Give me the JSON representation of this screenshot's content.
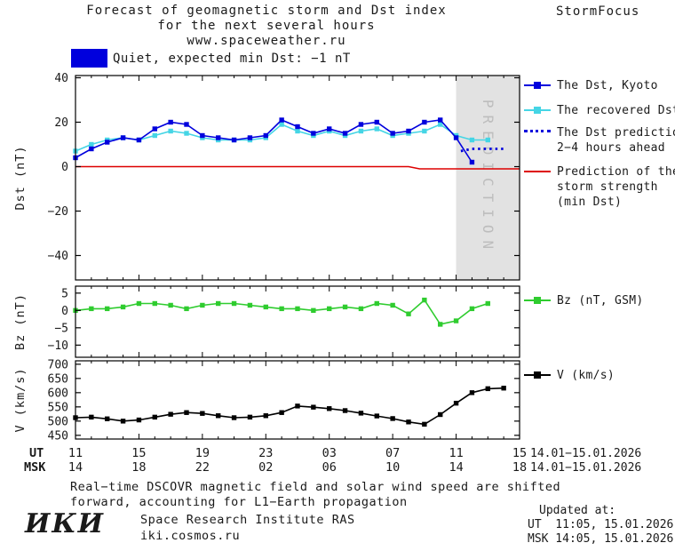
{
  "header": {
    "title_line1": "Forecast of geomagnetic storm and Dst index",
    "title_line2": "for the next several hours",
    "title_line3": "www.spaceweather.ru",
    "brand": "StormFocus"
  },
  "status": {
    "label": "Quiet, expected min Dst: −1 nT"
  },
  "colors": {
    "kyoto": "#0000dd",
    "recovered": "#45d5e5",
    "prediction": "#0000dd",
    "storm": "#dd0000",
    "bz": "#2fcc2f",
    "v": "#000000",
    "band": "#e2e2e2",
    "band_text": "#bdbdbd",
    "quiet_swatch": "#0000dd"
  },
  "chart_data": [
    {
      "type": "line",
      "title": "Forecast of geomagnetic storm and Dst index for the next several hours",
      "ylabel": "Dst (nT)",
      "ylim": [
        -51,
        41
      ],
      "yticks": [
        40,
        20,
        0,
        -20,
        -40
      ],
      "x_unit": "hours since 11:00 UT 14.01.2026",
      "prediction_band": {
        "x_start": 24,
        "x_end": 28,
        "label": "PREDICTION"
      },
      "series": [
        {
          "id": "dst-kyoto",
          "name": "The Dst, Kyoto",
          "color": "#0000dd",
          "marker": "square",
          "x": [
            0,
            1,
            2,
            3,
            4,
            5,
            6,
            7,
            8,
            9,
            10,
            11,
            12,
            13,
            14,
            15,
            16,
            17,
            18,
            19,
            20,
            21,
            22,
            23,
            24,
            25
          ],
          "values": [
            4,
            8,
            11,
            13,
            12,
            17,
            20,
            19,
            14,
            13,
            12,
            13,
            14,
            21,
            18,
            15,
            17,
            15,
            19,
            20,
            15,
            16,
            20,
            21,
            13,
            2
          ]
        },
        {
          "id": "dst-recovered",
          "name": "The recovered Dst",
          "color": "#45d5e5",
          "marker": "square",
          "x": [
            0,
            1,
            2,
            3,
            4,
            5,
            6,
            7,
            8,
            9,
            10,
            11,
            12,
            13,
            14,
            15,
            16,
            17,
            18,
            19,
            20,
            21,
            22,
            23,
            24,
            25,
            26
          ],
          "values": [
            7,
            10,
            12,
            13,
            12,
            14,
            16,
            15,
            13,
            12,
            12,
            12,
            13,
            19,
            16,
            14,
            16,
            14,
            16,
            17,
            14,
            15,
            16,
            19,
            14,
            12,
            12
          ]
        },
        {
          "id": "dst-prediction",
          "name": "The Dst prediction 2−4 hours ahead",
          "color": "#0000dd",
          "style": "dotted",
          "x": [
            24.3,
            25,
            26,
            27
          ],
          "values": [
            7,
            8,
            8,
            8
          ]
        },
        {
          "id": "storm-prediction",
          "name": "Prediction of the storm strength (min Dst)",
          "color": "#dd0000",
          "x": [
            0,
            21,
            21.7,
            28
          ],
          "values": [
            0,
            0,
            -1,
            -1
          ]
        }
      ]
    },
    {
      "type": "line",
      "ylabel": "Bz (nT)",
      "ylim": [
        -13.5,
        7
      ],
      "yticks": [
        5,
        0,
        -5,
        -10
      ],
      "series": [
        {
          "id": "bz",
          "name": "Bz (nT, GSM)",
          "color": "#2fcc2f",
          "marker": "square",
          "x": [
            0,
            1,
            2,
            3,
            4,
            5,
            6,
            7,
            8,
            9,
            10,
            11,
            12,
            13,
            14,
            15,
            16,
            17,
            18,
            19,
            20,
            21,
            22,
            23,
            24,
            25,
            26
          ],
          "values": [
            0,
            0.5,
            0.5,
            1,
            2,
            2,
            1.5,
            0.5,
            1.5,
            2,
            2,
            1.5,
            1,
            0.5,
            0.5,
            0,
            0.5,
            1,
            0.5,
            2,
            1.5,
            -1,
            3,
            -4,
            -3,
            0.5,
            2
          ]
        }
      ]
    },
    {
      "type": "line",
      "ylabel": "V (km/s)",
      "ylim": [
        437,
        712
      ],
      "yticks": [
        700,
        650,
        600,
        550,
        500,
        450
      ],
      "series": [
        {
          "id": "v",
          "name": "V (km/s)",
          "color": "#000000",
          "marker": "square",
          "x": [
            0,
            1,
            2,
            3,
            4,
            5,
            6,
            7,
            8,
            9,
            10,
            11,
            12,
            13,
            14,
            15,
            16,
            17,
            18,
            19,
            20,
            21,
            22,
            23,
            24,
            25,
            26,
            27
          ],
          "values": [
            512,
            514,
            508,
            500,
            504,
            514,
            524,
            530,
            527,
            519,
            512,
            514,
            519,
            530,
            553,
            549,
            544,
            537,
            528,
            518,
            509,
            497,
            489,
            523,
            563,
            600,
            614,
            616
          ]
        }
      ]
    }
  ],
  "xaxis": {
    "xlim": [
      0,
      28
    ],
    "ticks_t": [
      0,
      4,
      8,
      12,
      16,
      20,
      24,
      28
    ],
    "ut_labels": [
      "11",
      "15",
      "19",
      "23",
      "03",
      "07",
      "11",
      "15"
    ],
    "msk_labels": [
      "14",
      "18",
      "22",
      "02",
      "06",
      "10",
      "14",
      "18"
    ],
    "ut_row_label": "UT",
    "msk_row_label": "MSK",
    "ut_date": "14.01−15.01.2026",
    "msk_date": "14.01−15.01.2026"
  },
  "legend": {
    "kyoto": "The Dst, Kyoto",
    "recovered": "The recovered Dst",
    "prediction_1": "The Dst prediction",
    "prediction_2": "2−4 hours ahead",
    "storm_1": "Prediction of the",
    "storm_2": "storm strength",
    "storm_3": "(min Dst)",
    "bz": "Bz (nT, GSM)",
    "v": "V (km/s)"
  },
  "footer": {
    "note_line1": "Real−time DSCOVR magnetic field and solar wind speed are shifted",
    "note_line2": "forward, accounting for L1−Earth propagation",
    "updated_label": "Updated at:",
    "updated_ut": "UT  11:05, 15.01.2026",
    "updated_msk": "MSK 14:05, 15.01.2026",
    "logo": "ИКИ",
    "institute": "Space Research Institute RAS",
    "site": "iki.cosmos.ru"
  }
}
